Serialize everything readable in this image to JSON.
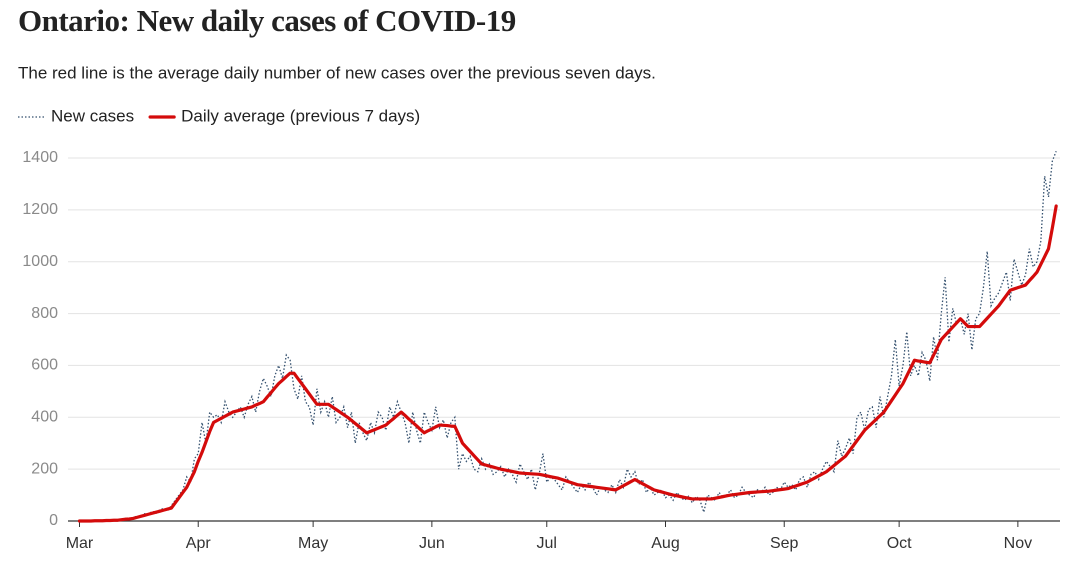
{
  "chart_data": {
    "type": "line",
    "title": "Ontario: New daily cases of COVID-19",
    "subtitle": "The red line is the average daily number of new cases over the previous seven days.",
    "xlim": [
      -3,
      256
    ],
    "xticks": [
      {
        "value": 0,
        "label": "Mar"
      },
      {
        "value": 31,
        "label": "Apr"
      },
      {
        "value": 61,
        "label": "May"
      },
      {
        "value": 92,
        "label": "Jun"
      },
      {
        "value": 122,
        "label": "Jul"
      },
      {
        "value": 153,
        "label": "Aug"
      },
      {
        "value": 184,
        "label": "Sep"
      },
      {
        "value": 214,
        "label": "Oct"
      },
      {
        "value": 245,
        "label": "Nov"
      }
    ],
    "ylim": [
      0,
      1400
    ],
    "yticks": [
      0,
      200,
      400,
      600,
      800,
      1000,
      1200,
      1400
    ],
    "grid": true,
    "legend": "top-left",
    "series": [
      {
        "name": "New cases",
        "color": "#34506e",
        "style": "dotted",
        "values": [
          0,
          0,
          0,
          1,
          1,
          2,
          1,
          3,
          2,
          4,
          5,
          6,
          10,
          8,
          14,
          18,
          16,
          28,
          24,
          38,
          30,
          44,
          48,
          40,
          60,
          80,
          100,
          120,
          170,
          150,
          240,
          260,
          380,
          300,
          420,
          400,
          410,
          380,
          460,
          420,
          400,
          420,
          440,
          400,
          450,
          480,
          420,
          500,
          550,
          520,
          480,
          560,
          600,
          550,
          640,
          620,
          510,
          470,
          560,
          460,
          440,
          370,
          510,
          420,
          460,
          400,
          480,
          380,
          400,
          440,
          360,
          420,
          300,
          380,
          340,
          310,
          380,
          340,
          420,
          400,
          350,
          440,
          400,
          460,
          420,
          380,
          300,
          420,
          350,
          300,
          420,
          380,
          350,
          440,
          360,
          390,
          320,
          380,
          400,
          200,
          260,
          230,
          250,
          200,
          190,
          240,
          200,
          220,
          180,
          190,
          210,
          170,
          200,
          180,
          150,
          220,
          190,
          160,
          200,
          120,
          180,
          260,
          150,
          170,
          160,
          140,
          120,
          170,
          150,
          130,
          110,
          140,
          120,
          150,
          130,
          100,
          130,
          120,
          110,
          140,
          110,
          160,
          130,
          200,
          170,
          190,
          140,
          160,
          110,
          130,
          100,
          110,
          120,
          90,
          100,
          80,
          110,
          90,
          80,
          95,
          70,
          95,
          80,
          34,
          100,
          90,
          80,
          110,
          90,
          100,
          120,
          90,
          100,
          130,
          110,
          100,
          90,
          120,
          110,
          130,
          100,
          110,
          130,
          120,
          150,
          130,
          140,
          120,
          160,
          170,
          130,
          180,
          190,
          160,
          200,
          230,
          210,
          190,
          310,
          250,
          280,
          320,
          260,
          400,
          420,
          350,
          430,
          440,
          360,
          480,
          400,
          480,
          560,
          700,
          520,
          600,
          730,
          560,
          600,
          560,
          650,
          620,
          540,
          710,
          620,
          800,
          940,
          690,
          820,
          760,
          780,
          720,
          800,
          660,
          780,
          800,
          900,
          1040,
          830,
          860,
          880,
          920,
          960,
          850,
          1010,
          960,
          910,
          950,
          1050,
          980,
          1000,
          1080,
          1330,
          1250,
          1388,
          1426
        ]
      },
      {
        "name": "Daily average (previous 7 days)",
        "color": "#d40b0b",
        "style": "solid",
        "values": [
          0,
          0,
          0,
          0,
          1,
          1,
          1,
          2,
          2,
          3,
          3,
          5,
          7,
          8,
          10,
          14,
          18,
          22,
          26,
          30,
          34,
          38,
          42,
          46,
          50,
          70,
          90,
          110,
          130,
          160,
          190,
          230,
          265,
          305,
          345,
          380,
          388,
          396,
          404,
          412,
          420,
          424,
          428,
          432,
          436,
          440,
          447,
          453,
          460,
          478,
          495,
          513,
          530,
          543,
          557,
          570,
          570,
          550,
          530,
          510,
          490,
          470,
          450,
          450,
          450,
          450,
          440,
          430,
          420,
          410,
          400,
          388,
          376,
          364,
          352,
          340,
          346,
          352,
          358,
          364,
          370,
          383,
          395,
          408,
          420,
          407,
          393,
          380,
          367,
          353,
          340,
          348,
          355,
          363,
          370,
          369,
          368,
          366,
          365,
          333,
          300,
          284,
          268,
          252,
          236,
          220,
          216,
          212,
          208,
          204,
          200,
          197,
          194,
          191,
          188,
          185,
          184,
          183,
          182,
          181,
          180,
          177,
          174,
          171,
          168,
          165,
          160,
          155,
          150,
          145,
          140,
          138,
          136,
          134,
          132,
          130,
          128,
          126,
          124,
          122,
          120,
          128,
          136,
          144,
          152,
          160,
          152,
          144,
          136,
          128,
          120,
          116,
          112,
          108,
          104,
          100,
          97,
          94,
          91,
          88,
          85,
          85,
          85,
          85,
          85,
          85,
          88,
          91,
          94,
          97,
          100,
          102,
          104,
          106,
          108,
          110,
          111,
          112,
          113,
          114,
          115,
          117,
          119,
          121,
          123,
          125,
          130,
          135,
          140,
          145,
          150,
          158,
          166,
          174,
          182,
          190,
          202,
          214,
          226,
          238,
          250,
          270,
          290,
          310,
          330,
          350,
          364,
          378,
          392,
          406,
          420,
          442,
          464,
          486,
          508,
          530,
          560,
          590,
          620,
          617,
          615,
          612,
          610,
          640,
          670,
          700,
          716,
          732,
          748,
          764,
          780,
          765,
          750,
          750,
          750,
          750,
          766,
          782,
          798,
          814,
          830,
          850,
          870,
          890,
          895,
          900,
          905,
          910,
          927,
          943,
          960,
          990,
          1020,
          1050,
          1130,
          1215
        ]
      }
    ]
  }
}
